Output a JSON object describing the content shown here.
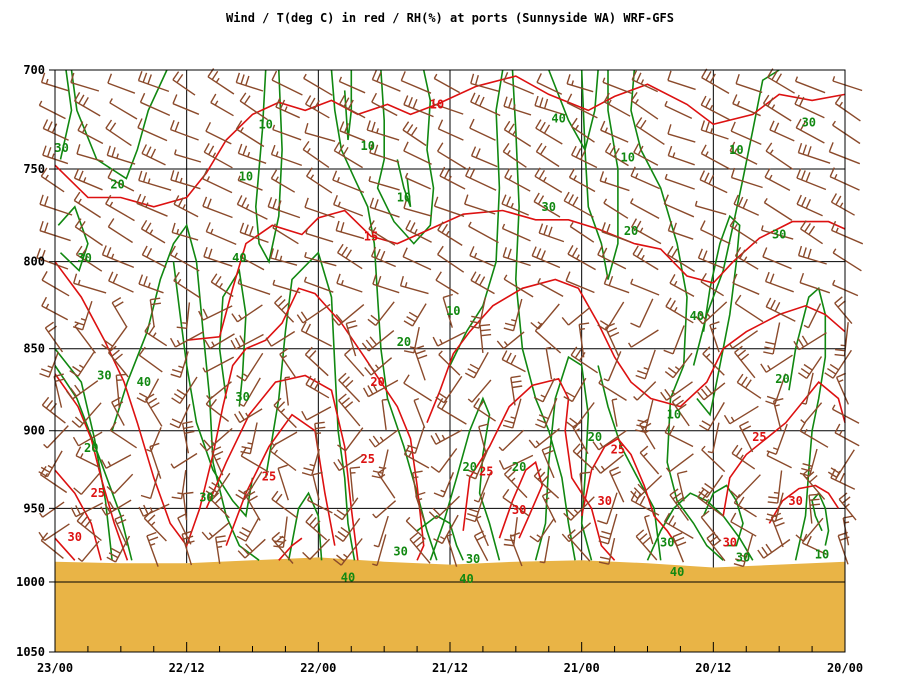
{
  "chart_data": {
    "type": "line",
    "title": "Wind / T(deg C) in red / RH(%) at ports (Sunnyside WA)  WRF-GFS",
    "y_axis": {
      "label": "",
      "inverted": true,
      "ylim": [
        1050,
        700
      ],
      "ticks": [
        700,
        750,
        800,
        850,
        900,
        950,
        1000,
        1050
      ],
      "tick_labels": [
        "700",
        "750",
        "800",
        "850",
        "900",
        "950",
        "1000",
        "1050"
      ]
    },
    "x_axis": {
      "label": "",
      "xlim": [
        0,
        72
      ],
      "direction": "time decreasing to the right",
      "major_ticks": [
        0,
        12,
        24,
        36,
        48,
        60,
        72
      ],
      "tick_labels": [
        "23/00",
        "22/12",
        "22/00",
        "21/12",
        "21/00",
        "20/12",
        "20/00"
      ],
      "minor_tick_step_hours": 3
    },
    "grid": true,
    "ground_color": "#e9b446",
    "series": [
      {
        "name": "T(deg C)",
        "color": "#dd1111",
        "contours": [
          {
            "level": 10,
            "label_points": [
              {
                "x": 34.8,
                "p": 717
              }
            ]
          },
          {
            "level": 15,
            "label_points": [
              {
                "x": 28.8,
                "p": 786
              }
            ]
          },
          {
            "level": 20,
            "label_points": [
              {
                "x": 29.4,
                "p": 870
              }
            ]
          },
          {
            "level": 25,
            "label_points": [
              {
                "x": 3.9,
                "p": 940
              },
              {
                "x": 19.5,
                "p": 929
              },
              {
                "x": 28.5,
                "p": 918
              },
              {
                "x": 39.3,
                "p": 926
              },
              {
                "x": 51.3,
                "p": 912
              },
              {
                "x": 64.2,
                "p": 904
              }
            ]
          },
          {
            "level": 30,
            "label_points": [
              {
                "x": 1.8,
                "p": 969
              },
              {
                "x": 42.3,
                "p": 951
              },
              {
                "x": 50.1,
                "p": 945
              },
              {
                "x": 61.5,
                "p": 973
              },
              {
                "x": 67.5,
                "p": 945
              }
            ]
          }
        ]
      },
      {
        "name": "RH(%)",
        "color": "#118811",
        "contours": [
          {
            "level": 10,
            "label_points": [
              {
                "x": 19.2,
                "p": 727
              },
              {
                "x": 17.4,
                "p": 754
              },
              {
                "x": 28.5,
                "p": 738
              },
              {
                "x": 31.8,
                "p": 765
              },
              {
                "x": 36.3,
                "p": 828
              },
              {
                "x": 52.2,
                "p": 744
              },
              {
                "x": 62.1,
                "p": 740
              },
              {
                "x": 56.4,
                "p": 890
              },
              {
                "x": 69.9,
                "p": 981
              }
            ]
          },
          {
            "level": 20,
            "label_points": [
              {
                "x": 5.7,
                "p": 758
              },
              {
                "x": 31.8,
                "p": 846
              },
              {
                "x": 3.3,
                "p": 911
              },
              {
                "x": 37.8,
                "p": 923
              },
              {
                "x": 42.3,
                "p": 923
              },
              {
                "x": 52.5,
                "p": 783
              },
              {
                "x": 49.2,
                "p": 904
              },
              {
                "x": 66.3,
                "p": 868
              }
            ]
          },
          {
            "level": 30,
            "label_points": [
              {
                "x": 0.6,
                "p": 739
              },
              {
                "x": 2.7,
                "p": 798
              },
              {
                "x": 4.5,
                "p": 866
              },
              {
                "x": 17.1,
                "p": 879
              },
              {
                "x": 13.8,
                "p": 943
              },
              {
                "x": 45.0,
                "p": 770
              },
              {
                "x": 66.0,
                "p": 785
              },
              {
                "x": 68.7,
                "p": 726
              },
              {
                "x": 38.1,
                "p": 984
              },
              {
                "x": 31.5,
                "p": 979
              },
              {
                "x": 55.8,
                "p": 973
              },
              {
                "x": 62.7,
                "p": 983
              }
            ]
          },
          {
            "level": 40,
            "label_points": [
              {
                "x": 8.1,
                "p": 870
              },
              {
                "x": 16.8,
                "p": 798
              },
              {
                "x": 45.9,
                "p": 724
              },
              {
                "x": 58.5,
                "p": 831
              },
              {
                "x": 56.7,
                "p": 993
              },
              {
                "x": 37.5,
                "p": 998
              },
              {
                "x": 26.7,
                "p": 997
              }
            ]
          }
        ]
      },
      {
        "name": "Wind",
        "color": "#8b4a2b"
      }
    ]
  }
}
